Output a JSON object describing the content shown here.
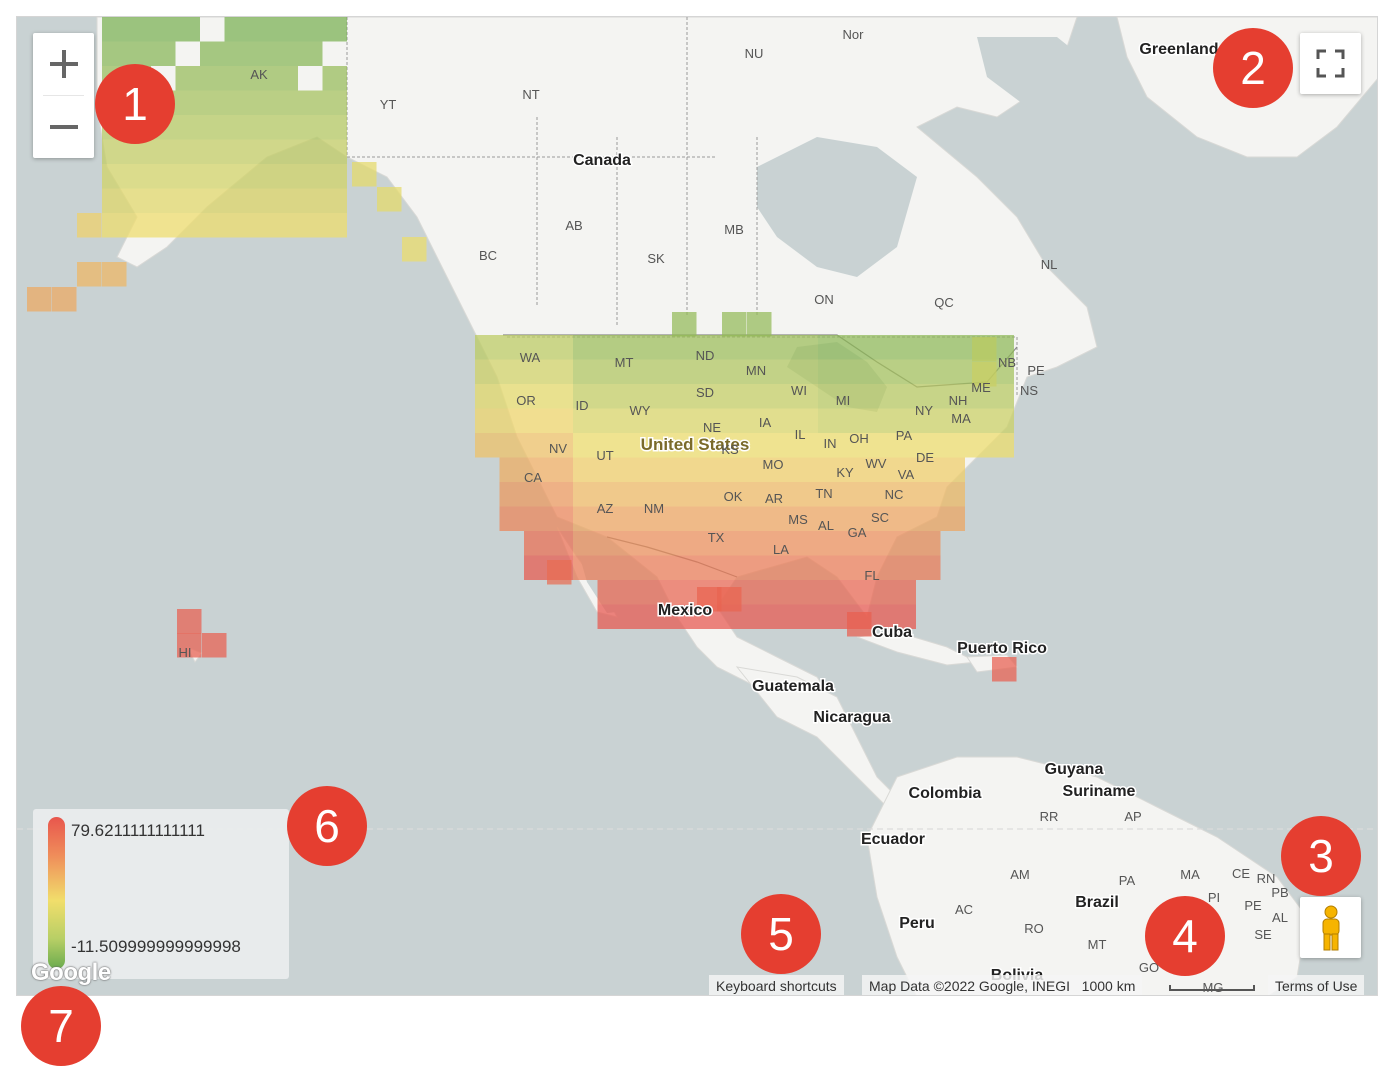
{
  "map": {
    "labels": {
      "countries": [
        {
          "name": "Canada"
        },
        {
          "name": "United States"
        },
        {
          "name": "Mexico"
        },
        {
          "name": "Cuba"
        },
        {
          "name": "Puerto Rico"
        },
        {
          "name": "Guatemala"
        },
        {
          "name": "Nicaragua"
        },
        {
          "name": "Colombia"
        },
        {
          "name": "Ecuador"
        },
        {
          "name": "Peru"
        },
        {
          "name": "Brazil"
        },
        {
          "name": "Guyana"
        },
        {
          "name": "Suriname"
        },
        {
          "name": "Greenland"
        },
        {
          "name": "Bolivia"
        }
      ],
      "regions": [
        "AK",
        "YT",
        "NT",
        "NU",
        "BC",
        "AB",
        "SK",
        "MB",
        "ON",
        "QC",
        "NL",
        "NB",
        "PE",
        "NS",
        "WA",
        "OR",
        "CA",
        "NV",
        "ID",
        "MT",
        "WY",
        "UT",
        "AZ",
        "NM",
        "ND",
        "SD",
        "NE",
        "KS",
        "OK",
        "TX",
        "MN",
        "IA",
        "MO",
        "AR",
        "LA",
        "WI",
        "IL",
        "MI",
        "IN",
        "OH",
        "KY",
        "TN",
        "MS",
        "AL",
        "GA",
        "FL",
        "SC",
        "NC",
        "VA",
        "WV",
        "PA",
        "NY",
        "DE",
        "MA",
        "NH",
        "ME",
        "HI",
        "RR",
        "AP",
        "AM",
        "PA",
        "MA",
        "CE",
        "RN",
        "PB",
        "PI",
        "PE",
        "AL",
        "SE",
        "AC",
        "RO",
        "MT",
        "GO",
        "MG",
        "Nor"
      ]
    },
    "heatmap": {
      "min": -11.509999999999998,
      "max": 79.6211111111111,
      "colors": {
        "low": "#6aab4e",
        "mid": "#f1de6b",
        "high": "#e8564d"
      }
    }
  },
  "controls": {
    "zoom_in_icon": "plus-icon",
    "zoom_out_icon": "minus-icon",
    "fullscreen_icon": "fullscreen-icon",
    "streetview_icon": "pegman-icon"
  },
  "legend": {
    "max_label": "79.6211111111111",
    "min_label": "-11.509999999999998"
  },
  "footer": {
    "keyboard_shortcuts": "Keyboard shortcuts",
    "map_data": "Map Data ©2022 Google, INEGI",
    "scale": "1000 km",
    "terms": "Terms of Use"
  },
  "logo": "Google",
  "callouts": [
    "1",
    "2",
    "3",
    "4",
    "5",
    "6",
    "7"
  ]
}
